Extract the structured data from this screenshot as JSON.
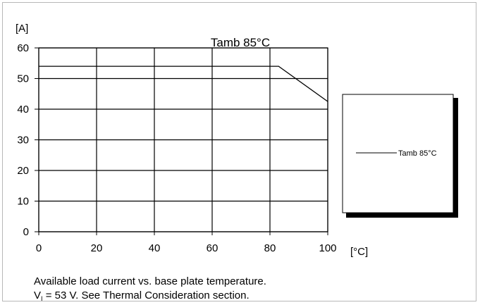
{
  "chart_data": {
    "type": "line",
    "title": "Tamb  85°C",
    "ylabel": "[A]",
    "xlabel": "[°C]",
    "x_ticks": [
      0,
      20,
      40,
      60,
      80,
      100
    ],
    "y_ticks": [
      0,
      10,
      20,
      30,
      40,
      50,
      60
    ],
    "xlim": [
      0,
      100
    ],
    "ylim": [
      0,
      60
    ],
    "grid": true,
    "legend_position": "right",
    "series": [
      {
        "name": "Tamb 85°C",
        "color": "#000000",
        "points": [
          {
            "x": 0,
            "y": 54
          },
          {
            "x": 83,
            "y": 54
          },
          {
            "x": 100,
            "y": 42.5
          }
        ]
      }
    ]
  },
  "caption": {
    "line1": "Available load  current vs. base plate temperature.",
    "line2_prefix": "V",
    "line2_sub": "I",
    "line2_rest": " = 53 V. See Thermal  Consideration section."
  }
}
